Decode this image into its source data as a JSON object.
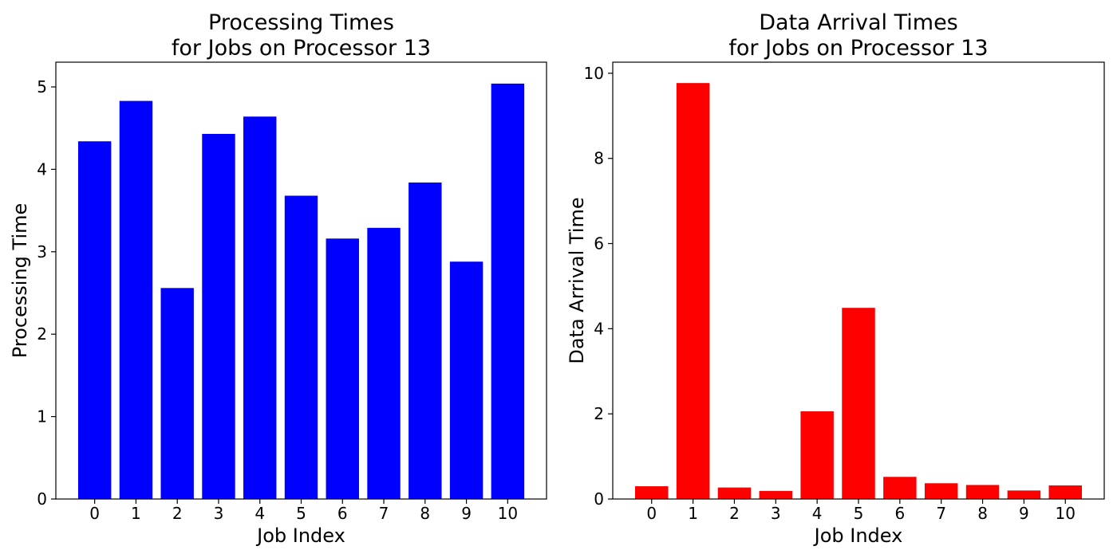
{
  "chart_data": [
    {
      "type": "bar",
      "title": [
        "Processing Times",
        "for Jobs on Processor 13"
      ],
      "xlabel": "Job Index",
      "ylabel": "Processing Time",
      "categories": [
        "0",
        "1",
        "2",
        "3",
        "4",
        "5",
        "6",
        "7",
        "8",
        "9",
        "10"
      ],
      "values": [
        4.34,
        4.83,
        2.56,
        4.43,
        4.64,
        3.68,
        3.16,
        3.29,
        3.84,
        2.88,
        5.04
      ],
      "color": "#0000ff",
      "ylim": [
        0,
        5.3
      ],
      "yticks": [
        "0",
        "1",
        "2",
        "3",
        "4",
        "5"
      ],
      "grid": false
    },
    {
      "type": "bar",
      "title": [
        "Data Arrival Times",
        "for Jobs on Processor 13"
      ],
      "xlabel": "Job Index",
      "ylabel": "Data Arrival Time",
      "categories": [
        "0",
        "1",
        "2",
        "3",
        "4",
        "5",
        "6",
        "7",
        "8",
        "9",
        "10"
      ],
      "values": [
        0.3,
        9.77,
        0.27,
        0.19,
        2.06,
        4.49,
        0.52,
        0.37,
        0.33,
        0.2,
        0.32
      ],
      "color": "#ff0000",
      "ylim": [
        0,
        10.26
      ],
      "yticks": [
        "0",
        "2",
        "4",
        "6",
        "8",
        "10"
      ],
      "grid": false
    }
  ]
}
